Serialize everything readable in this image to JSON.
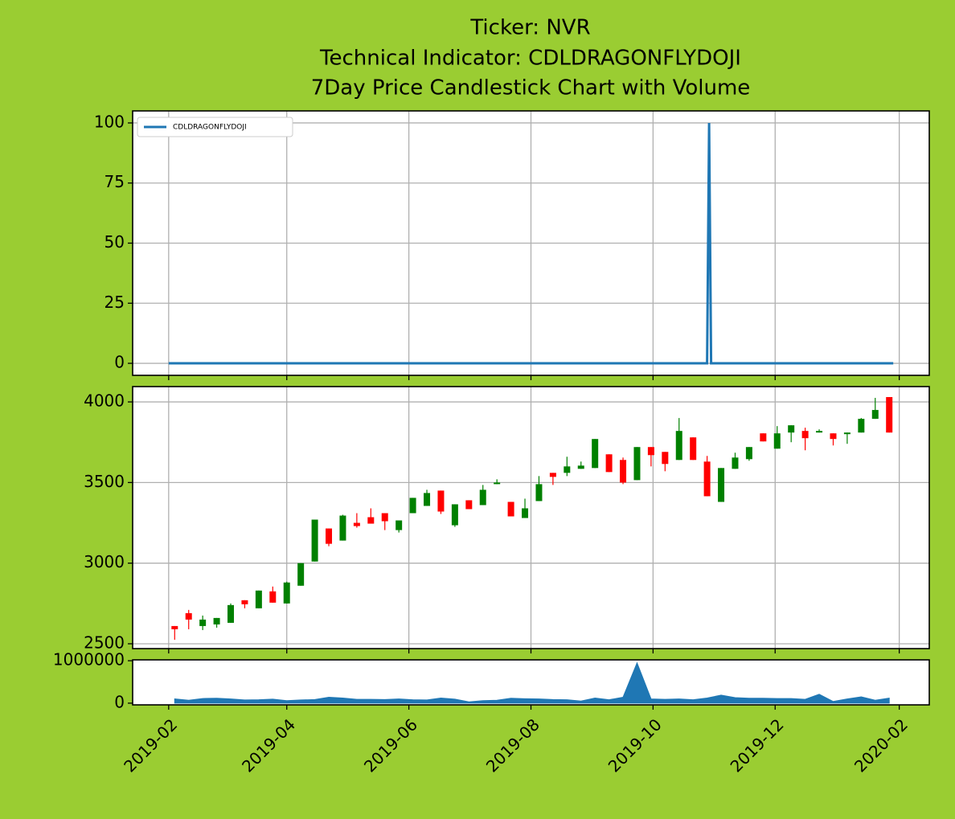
{
  "chart_data": [
    {
      "type": "line",
      "title": [
        "Ticker: NVR",
        "Technical Indicator: CDLDRAGONFLYDOJI",
        "7Day Price Candlestick Chart with Volume"
      ],
      "x": [
        "2019-02-01",
        "2019-10-28",
        "2019-10-29",
        "2019-10-30",
        "2020-01-29"
      ],
      "series": [
        {
          "name": "CDLDRAGONFLYDOJI",
          "color": "#1f77b4",
          "values": [
            0,
            0,
            100,
            0,
            0
          ]
        }
      ],
      "ylim": [
        -5,
        105
      ],
      "yticks": [
        0,
        25,
        50,
        75,
        100
      ],
      "grid": true,
      "legend": "upper left"
    },
    {
      "type": "candlestick",
      "x": [
        "2019-02-04",
        "2019-02-11",
        "2019-02-18",
        "2019-02-25",
        "2019-03-04",
        "2019-03-11",
        "2019-03-18",
        "2019-03-25",
        "2019-04-01",
        "2019-04-08",
        "2019-04-15",
        "2019-04-22",
        "2019-04-29",
        "2019-05-06",
        "2019-05-13",
        "2019-05-20",
        "2019-05-27",
        "2019-06-03",
        "2019-06-10",
        "2019-06-17",
        "2019-06-24",
        "2019-07-01",
        "2019-07-08",
        "2019-07-15",
        "2019-07-22",
        "2019-07-29",
        "2019-08-05",
        "2019-08-12",
        "2019-08-19",
        "2019-08-26",
        "2019-09-02",
        "2019-09-09",
        "2019-09-16",
        "2019-09-23",
        "2019-09-30",
        "2019-10-07",
        "2019-10-14",
        "2019-10-21",
        "2019-10-28",
        "2019-11-04",
        "2019-11-11",
        "2019-11-18",
        "2019-11-25",
        "2019-12-02",
        "2019-12-09",
        "2019-12-16",
        "2019-12-23",
        "2019-12-30",
        "2020-01-06",
        "2020-01-13",
        "2020-01-20",
        "2020-01-27"
      ],
      "open": [
        2610,
        2690,
        2610,
        2620,
        2630,
        2770,
        2720,
        2825,
        2750,
        2860,
        3010,
        3215,
        3140,
        3250,
        3285,
        3310,
        3205,
        3310,
        3355,
        3450,
        3235,
        3390,
        3360,
        3490,
        3380,
        3280,
        3385,
        3560,
        3560,
        3585,
        3590,
        3675,
        3640,
        3515,
        3720,
        3690,
        3640,
        3780,
        3630,
        3380,
        3585,
        3645,
        3805,
        3710,
        3810,
        3820,
        3810,
        3805,
        3800,
        3810,
        3895,
        4030
      ],
      "high": [
        2610,
        2710,
        2675,
        2660,
        2750,
        2770,
        2830,
        2855,
        2885,
        3000,
        3270,
        3215,
        3300,
        3310,
        3340,
        3310,
        3265,
        3405,
        3455,
        3450,
        3365,
        3390,
        3485,
        3520,
        3380,
        3400,
        3540,
        3560,
        3660,
        3630,
        3770,
        3675,
        3655,
        3720,
        3720,
        3690,
        3900,
        3780,
        3665,
        3590,
        3685,
        3720,
        3805,
        3850,
        3855,
        3840,
        3830,
        3805,
        3810,
        3900,
        4025,
        4030
      ],
      "low": [
        2525,
        2590,
        2585,
        2600,
        2630,
        2720,
        2720,
        2755,
        2750,
        2860,
        3010,
        3105,
        3140,
        3220,
        3245,
        3205,
        3190,
        3310,
        3355,
        3305,
        3225,
        3335,
        3360,
        3490,
        3290,
        3280,
        3385,
        3485,
        3540,
        3585,
        3590,
        3565,
        3490,
        3515,
        3600,
        3570,
        3640,
        3640,
        3415,
        3380,
        3585,
        3635,
        3755,
        3710,
        3750,
        3700,
        3810,
        3730,
        3740,
        3810,
        3895,
        3810
      ],
      "close": [
        2590,
        2650,
        2650,
        2660,
        2740,
        2745,
        2830,
        2755,
        2880,
        3000,
        3270,
        3120,
        3295,
        3230,
        3245,
        3260,
        3265,
        3405,
        3435,
        3320,
        3365,
        3335,
        3455,
        3500,
        3290,
        3340,
        3490,
        3535,
        3600,
        3605,
        3770,
        3565,
        3500,
        3720,
        3670,
        3615,
        3820,
        3640,
        3415,
        3590,
        3655,
        3720,
        3755,
        3805,
        3855,
        3775,
        3820,
        3770,
        3810,
        3895,
        3950,
        3810
      ],
      "up_color": "#008000",
      "down_color": "#ff0000",
      "ylim": [
        2470,
        4095
      ],
      "yticks": [
        2500,
        3000,
        3500,
        4000
      ],
      "grid": true
    },
    {
      "type": "area",
      "x": [
        "2019-02-04",
        "2019-02-11",
        "2019-02-18",
        "2019-02-25",
        "2019-03-04",
        "2019-03-11",
        "2019-03-18",
        "2019-03-25",
        "2019-04-01",
        "2019-04-08",
        "2019-04-15",
        "2019-04-22",
        "2019-04-29",
        "2019-05-06",
        "2019-05-13",
        "2019-05-20",
        "2019-05-27",
        "2019-06-03",
        "2019-06-10",
        "2019-06-17",
        "2019-06-24",
        "2019-07-01",
        "2019-07-08",
        "2019-07-15",
        "2019-07-22",
        "2019-07-29",
        "2019-08-05",
        "2019-08-12",
        "2019-08-19",
        "2019-08-26",
        "2019-09-02",
        "2019-09-09",
        "2019-09-16",
        "2019-09-23",
        "2019-09-30",
        "2019-10-07",
        "2019-10-14",
        "2019-10-21",
        "2019-10-28",
        "2019-11-04",
        "2019-11-11",
        "2019-11-18",
        "2019-11-25",
        "2019-12-02",
        "2019-12-09",
        "2019-12-16",
        "2019-12-23",
        "2019-12-30",
        "2020-01-06",
        "2020-01-13",
        "2020-01-20",
        "2020-01-27"
      ],
      "values": [
        100000,
        70000,
        110000,
        115000,
        100000,
        75000,
        80000,
        95000,
        60000,
        75000,
        85000,
        140000,
        120000,
        90000,
        90000,
        85000,
        100000,
        80000,
        75000,
        120000,
        95000,
        30000,
        60000,
        70000,
        115000,
        105000,
        100000,
        85000,
        80000,
        50000,
        120000,
        80000,
        140000,
        950000,
        100000,
        90000,
        100000,
        80000,
        120000,
        190000,
        130000,
        115000,
        115000,
        110000,
        110000,
        90000,
        210000,
        40000,
        100000,
        150000,
        70000,
        120000
      ],
      "color": "#1f77b4",
      "ylim": [
        -40000,
        1020000
      ],
      "yticks": [
        0,
        1000000
      ],
      "grid": false,
      "xlim": [
        "2019-01-14",
        "2020-02-16"
      ],
      "xticks": [
        {
          "value": "2019-02-01",
          "label": "2019-02"
        },
        {
          "value": "2019-04-01",
          "label": "2019-04"
        },
        {
          "value": "2019-06-01",
          "label": "2019-06"
        },
        {
          "value": "2019-08-01",
          "label": "2019-08"
        },
        {
          "value": "2019-10-01",
          "label": "2019-10"
        },
        {
          "value": "2019-12-01",
          "label": "2019-12"
        },
        {
          "value": "2020-02-01",
          "label": "2020-02"
        }
      ]
    }
  ]
}
